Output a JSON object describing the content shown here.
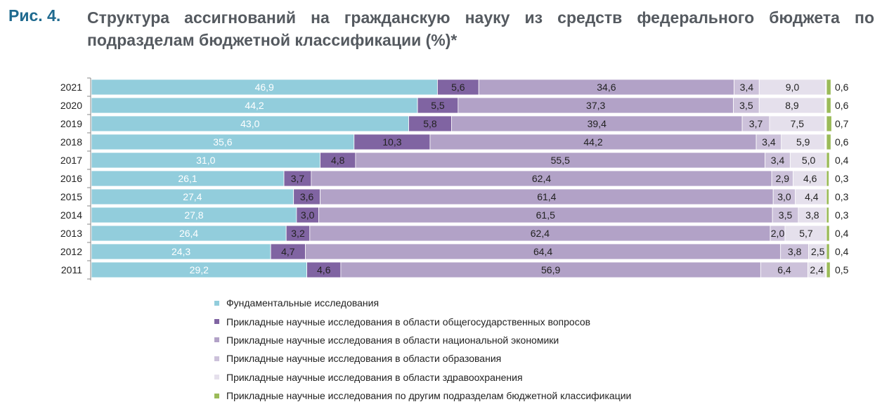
{
  "figure": {
    "label": "Рис. 4.",
    "title": "Структура ассигнований на гражданскую науку из средств федерального бюджета по подразделам бюджетной классификации (%)*"
  },
  "colors": {
    "fundamental": "#92cddc",
    "general": "#8064a2",
    "economy": "#b2a2c7",
    "education": "#ccc1da",
    "health": "#e5e0ec",
    "other": "#9bbb59"
  },
  "chart_data": {
    "type": "bar",
    "orientation": "horizontal",
    "stacked": true,
    "categories": [
      "2021",
      "2020",
      "2019",
      "2018",
      "2017",
      "2016",
      "2015",
      "2014",
      "2013",
      "2012",
      "2011"
    ],
    "series": [
      {
        "name": "Фундаментальные исследования",
        "color_key": "fundamental",
        "values": [
          46.9,
          44.2,
          43.0,
          35.6,
          31.0,
          26.1,
          27.4,
          27.8,
          26.4,
          24.3,
          29.2
        ],
        "labels": [
          "46,9",
          "44,2",
          "43,0",
          "35,6",
          "31,0",
          "26,1",
          "27,4",
          "27,8",
          "26,4",
          "24,3",
          "29,2"
        ]
      },
      {
        "name": "Прикладные научные исследования в области общегосударственных вопросов",
        "color_key": "general",
        "values": [
          5.6,
          5.5,
          5.8,
          10.3,
          4.8,
          3.7,
          3.6,
          3.0,
          3.2,
          4.7,
          4.6
        ],
        "labels": [
          "5,6",
          "5,5",
          "5,8",
          "10,3",
          "4,8",
          "3,7",
          "3,6",
          "3,0",
          "3,2",
          "4,7",
          "4,6"
        ]
      },
      {
        "name": "Прикладные научные исследования в области национальной экономики",
        "color_key": "economy",
        "values": [
          34.6,
          37.3,
          39.4,
          44.2,
          55.5,
          62.4,
          61.4,
          61.5,
          62.4,
          64.4,
          56.9
        ],
        "labels": [
          "34,6",
          "37,3",
          "39,4",
          "44,2",
          "55,5",
          "62,4",
          "61,4",
          "61,5",
          "62,4",
          "64,4",
          "56,9"
        ]
      },
      {
        "name": "Прикладные научные исследования в области образования",
        "color_key": "education",
        "values": [
          3.4,
          3.5,
          3.7,
          3.4,
          3.4,
          2.9,
          3.0,
          3.5,
          2.0,
          3.8,
          6.4
        ],
        "labels": [
          "3,4",
          "3,5",
          "3,7",
          "3,4",
          "3,4",
          "2,9",
          "3,0",
          "3,5",
          "2,0",
          "3,8",
          "6,4"
        ]
      },
      {
        "name": "Прикладные научные исследования в области здравоохранения",
        "color_key": "health",
        "values": [
          9.0,
          8.9,
          7.5,
          5.9,
          5.0,
          4.6,
          4.4,
          3.8,
          5.7,
          2.5,
          2.4
        ],
        "labels": [
          "9,0",
          "8,9",
          "7,5",
          "5,9",
          "5,0",
          "4,6",
          "4,4",
          "3,8",
          "5,7",
          "2,5",
          "2,4"
        ]
      },
      {
        "name": "Прикладные научные исследования по другим подразделам бюджетной классификации",
        "color_key": "other",
        "values": [
          0.6,
          0.6,
          0.7,
          0.6,
          0.4,
          0.3,
          0.3,
          0.3,
          0.4,
          0.4,
          0.5
        ],
        "labels": [
          "0,6",
          "0,6",
          "0,7",
          "0,6",
          "0,4",
          "0,3",
          "0,3",
          "0,3",
          "0,4",
          "0,4",
          "0,5"
        ]
      }
    ],
    "xlim": [
      0,
      100
    ],
    "legend_position": "bottom",
    "grid": false
  }
}
